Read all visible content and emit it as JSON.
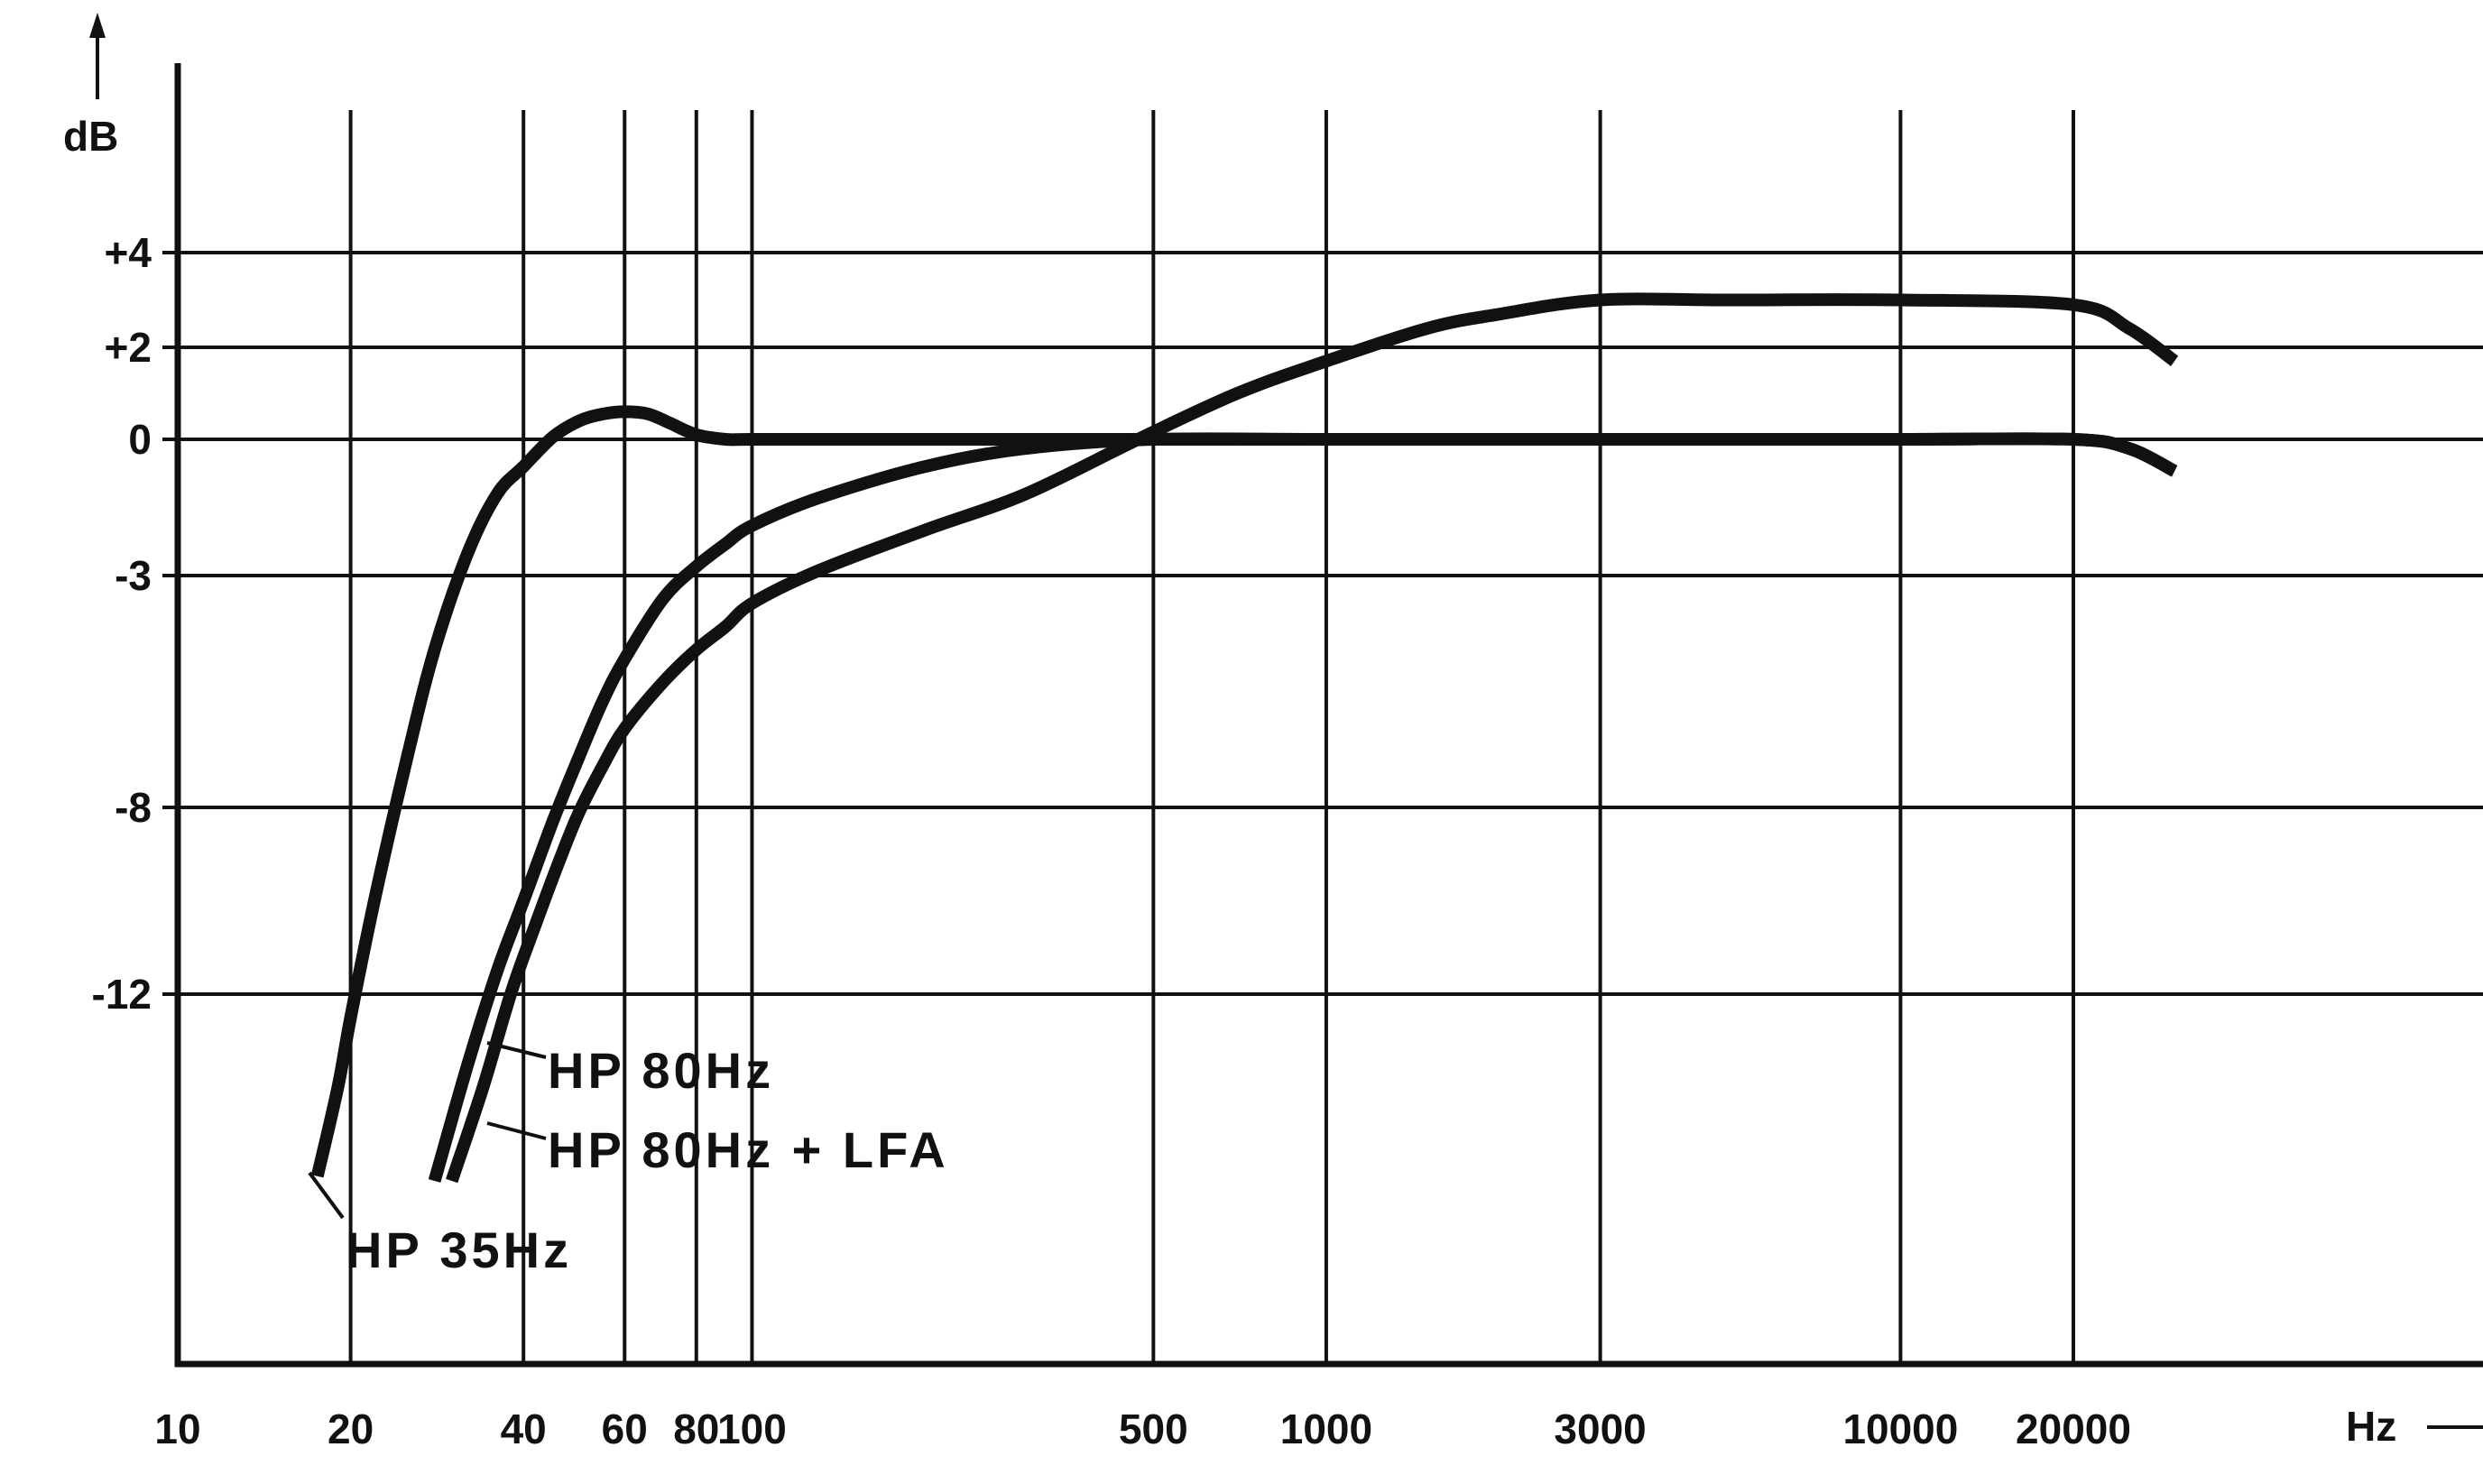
{
  "chart_data": {
    "type": "line",
    "title": "",
    "xlabel": "Hz",
    "ylabel": "dB",
    "x_scale": "log",
    "xlim": [
      10,
      35000
    ],
    "ylim": [
      -20,
      8
    ],
    "grid": true,
    "x_ticks": [
      {
        "value": 10,
        "label": "10"
      },
      {
        "value": 20,
        "label": "20"
      },
      {
        "value": 40,
        "label": "40"
      },
      {
        "value": 60,
        "label": "60"
      },
      {
        "value": 80,
        "label": "80"
      },
      {
        "value": 100,
        "label": "100"
      },
      {
        "value": 500,
        "label": "500"
      },
      {
        "value": 1000,
        "label": "1000"
      },
      {
        "value": 3000,
        "label": "3000"
      },
      {
        "value": 10000,
        "label": "10000"
      },
      {
        "value": 20000,
        "label": "20000"
      }
    ],
    "y_ticks": [
      {
        "value": 4,
        "label": "+4"
      },
      {
        "value": 2,
        "label": "+2"
      },
      {
        "value": 0,
        "label": "0"
      },
      {
        "value": -3,
        "label": "-3"
      },
      {
        "value": -8,
        "label": "-8"
      },
      {
        "value": -12,
        "label": "-12"
      }
    ],
    "series": [
      {
        "name": "HP 35Hz",
        "x": [
          17.5,
          19,
          20,
          22,
          25,
          28,
          32,
          36,
          40,
          45,
          50,
          55,
          60,
          66,
          72,
          80,
          90,
          100,
          150,
          250,
          500,
          1000,
          3000,
          10000,
          20000,
          25000,
          30000
        ],
        "y": [
          -15.9,
          -14.0,
          -12.5,
          -10.0,
          -7.0,
          -4.6,
          -2.5,
          -1.2,
          -0.6,
          0.05,
          0.4,
          0.55,
          0.6,
          0.55,
          0.35,
          0.1,
          0.0,
          0.0,
          0.0,
          0.0,
          0.0,
          0.0,
          0.0,
          0.0,
          0.0,
          -0.2,
          -0.7
        ]
      },
      {
        "name": "HP 80Hz",
        "x": [
          28,
          32,
          36,
          40,
          45,
          50,
          55,
          60,
          70,
          80,
          90,
          100,
          130,
          200,
          300,
          500,
          1000,
          3000,
          10000,
          20000,
          25000,
          30000
        ],
        "y": [
          -16.0,
          -13.5,
          -11.5,
          -10.0,
          -8.3,
          -6.9,
          -5.7,
          -4.8,
          -3.5,
          -2.8,
          -2.3,
          -1.9,
          -1.3,
          -0.6,
          -0.2,
          0.0,
          0.0,
          0.0,
          0.0,
          0.0,
          -0.2,
          -0.7
        ]
      },
      {
        "name": "HP 80Hz + LFA",
        "x": [
          30,
          34,
          38,
          42,
          46,
          50,
          55,
          60,
          70,
          80,
          90,
          100,
          130,
          200,
          300,
          470,
          700,
          1000,
          1500,
          2000,
          3000,
          5000,
          10000,
          20000,
          25000,
          30000
        ],
        "y": [
          -16.0,
          -14.0,
          -12.0,
          -10.5,
          -9.2,
          -8.1,
          -7.1,
          -6.3,
          -5.3,
          -4.6,
          -4.1,
          -3.6,
          -2.9,
          -2.0,
          -1.2,
          0.0,
          1.0,
          1.7,
          2.4,
          2.7,
          3.0,
          3.0,
          3.0,
          2.9,
          2.4,
          1.7
        ]
      }
    ],
    "annotations": [
      {
        "text": "HP 35Hz",
        "series": "HP 35Hz"
      },
      {
        "text": "HP 80Hz",
        "series": "HP 80Hz"
      },
      {
        "text": "HP 80Hz + LFA",
        "series": "HP 80Hz + LFA"
      }
    ]
  }
}
